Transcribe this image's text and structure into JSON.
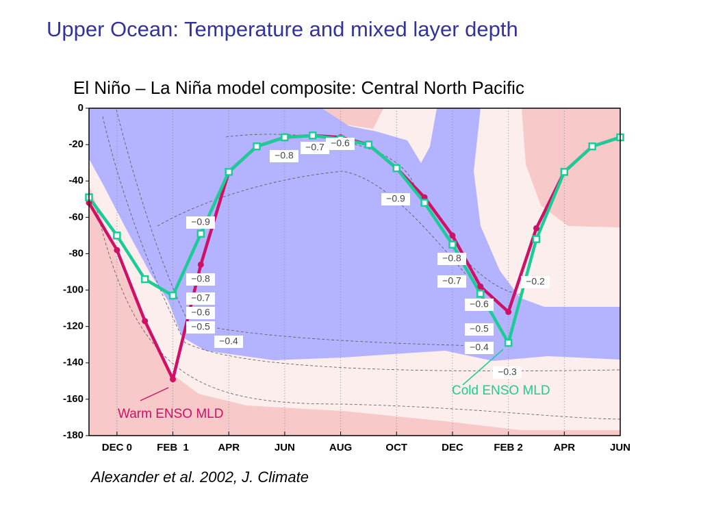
{
  "chart_data": {
    "type": "line",
    "title": "Upper Ocean: Temperature and mixed layer depth",
    "subtitle": "El Niño – La Niña model composite: Central North Pacific",
    "source": "Alexander et al. 2002, J. Climate",
    "x": [
      -1,
      0,
      1,
      2,
      3,
      4,
      5,
      6,
      7,
      8,
      9,
      10,
      11,
      12,
      13,
      14,
      15,
      16,
      17,
      18
    ],
    "series": [
      {
        "name": "Warm ENSO MLD",
        "color": "#cc1166",
        "marker": "circle",
        "values": [
          -52,
          -78,
          -117,
          -149,
          -86,
          -35,
          -21,
          -16,
          -15,
          -16,
          -20,
          -33,
          -49,
          -70,
          -98,
          -112,
          -66,
          -35,
          -21,
          -16
        ]
      },
      {
        "name": "Cold ENSO MLD",
        "color": "#1ccc96",
        "marker": "square",
        "values": [
          -49,
          -70,
          -94,
          -103,
          -69,
          -35,
          -21,
          -16,
          -15,
          -17,
          -20,
          -33,
          -52,
          -75,
          -102,
          -129,
          -72,
          -35,
          -21,
          -16
        ]
      }
    ],
    "xlim": [
      -1,
      18
    ],
    "xticks": [
      {
        "value": 0,
        "label": "DEC 0"
      },
      {
        "value": 2,
        "label": "FEB  1"
      },
      {
        "value": 4,
        "label": "APR"
      },
      {
        "value": 6,
        "label": "JUN"
      },
      {
        "value": 8,
        "label": "AUG"
      },
      {
        "value": 10,
        "label": "OCT"
      },
      {
        "value": 12,
        "label": "DEC"
      },
      {
        "value": 14,
        "label": "FEB 2"
      },
      {
        "value": 16,
        "label": "APR"
      },
      {
        "value": 18,
        "label": "JUN"
      }
    ],
    "ylim": [
      -180,
      0
    ],
    "yticks": [
      0,
      -20,
      -40,
      -60,
      -80,
      -100,
      -120,
      -140,
      -160,
      -180
    ],
    "grid": true,
    "contour_labels": [
      "−0.6",
      "−0.7",
      "−0.8",
      "−0.9",
      "−0.9",
      "−0.8",
      "−0.7",
      "−0.6",
      "−0.5",
      "−0.4",
      "−0.8",
      "−0.7",
      "−0.6",
      "−0.5",
      "−0.4",
      "−0.3",
      "−0.2"
    ]
  }
}
